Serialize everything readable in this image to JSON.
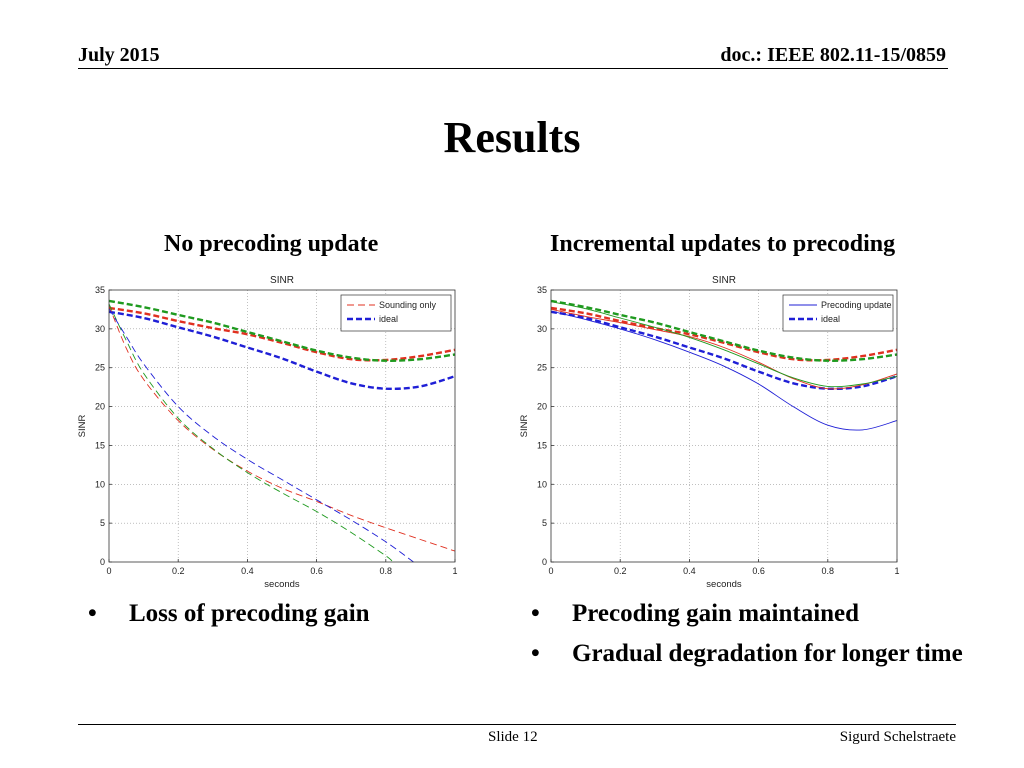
{
  "header": {
    "date": "July 2015",
    "doc": "doc.: IEEE 802.11-15/0859"
  },
  "title": "Results",
  "left_panel": {
    "subtitle": "No precoding update",
    "bullets": [
      {
        "symbol": "•",
        "text": "Loss of precoding gain"
      }
    ]
  },
  "right_panel": {
    "subtitle": "Incremental updates to precoding",
    "bullets": [
      {
        "symbol": "•",
        "text": "Precoding gain maintained"
      },
      {
        "symbol": "•",
        "text": "Gradual degradation for longer time"
      }
    ]
  },
  "footer": {
    "slide": "Slide 12",
    "author": "Sigurd Schelstraete"
  },
  "colors": {
    "red": "#e03020",
    "green": "#1f9a1f",
    "blue": "#1f1fd6"
  },
  "chart_data": [
    {
      "type": "line",
      "title": "SINR",
      "xlabel": "seconds",
      "ylabel": "SINR",
      "xlim": [
        0,
        1
      ],
      "ylim": [
        0,
        35
      ],
      "xticks": [
        0,
        0.2,
        0.4,
        0.6,
        0.8,
        1
      ],
      "xtick_labels": [
        "0",
        "0.2",
        "0.4",
        "0.6",
        "0.8",
        "1"
      ],
      "yticks": [
        0,
        5,
        10,
        15,
        20,
        25,
        30,
        35
      ],
      "ytick_labels": [
        "0",
        "5",
        "10",
        "15",
        "20",
        "25",
        "30",
        "35"
      ],
      "grid": true,
      "legend": {
        "position": "top-right",
        "entries": [
          {
            "label": "Sounding only",
            "style": "dashed-thin",
            "color": "red"
          },
          {
            "label": "ideal",
            "style": "dashed-thick",
            "color": "blue"
          }
        ]
      },
      "series": [
        {
          "name": "ideal (red)",
          "color": "red",
          "style": "dashed-thick",
          "x": [
            0,
            0.1,
            0.2,
            0.3,
            0.4,
            0.5,
            0.6,
            0.7,
            0.8,
            0.9,
            1.0
          ],
          "y": [
            32.7,
            32.0,
            31.0,
            30.1,
            29.3,
            28.2,
            27.0,
            26.1,
            26.0,
            26.5,
            27.3
          ]
        },
        {
          "name": "ideal (green)",
          "color": "green",
          "style": "dashed-thick",
          "x": [
            0,
            0.1,
            0.2,
            0.3,
            0.4,
            0.5,
            0.6,
            0.7,
            0.8,
            0.9,
            1.0
          ],
          "y": [
            33.6,
            32.8,
            31.8,
            30.8,
            29.6,
            28.4,
            27.2,
            26.3,
            25.9,
            26.1,
            26.7
          ]
        },
        {
          "name": "ideal (blue)",
          "color": "blue",
          "style": "dashed-thick",
          "x": [
            0,
            0.1,
            0.2,
            0.3,
            0.4,
            0.5,
            0.6,
            0.7,
            0.8,
            0.9,
            1.0
          ],
          "y": [
            32.2,
            31.4,
            30.2,
            29.0,
            27.6,
            26.2,
            24.5,
            23.0,
            22.3,
            22.6,
            23.9
          ]
        },
        {
          "name": "Sounding only (red)",
          "color": "red",
          "style": "dashed-thin",
          "x": [
            0,
            0.05,
            0.1,
            0.2,
            0.3,
            0.4,
            0.5,
            0.6,
            0.7,
            0.8,
            0.9,
            1.0
          ],
          "y": [
            33,
            27.5,
            23.5,
            18.2,
            14.5,
            11.7,
            9.5,
            7.8,
            6.0,
            4.4,
            2.9,
            1.4
          ]
        },
        {
          "name": "Sounding only (green)",
          "color": "green",
          "style": "dashed-thin",
          "x": [
            0,
            0.05,
            0.1,
            0.2,
            0.3,
            0.4,
            0.5,
            0.6,
            0.7,
            0.8,
            0.82
          ],
          "y": [
            33.2,
            28.5,
            24.3,
            18.5,
            14.6,
            11.5,
            8.9,
            6.5,
            3.8,
            0.8,
            0
          ]
        },
        {
          "name": "Sounding only (blue)",
          "color": "blue",
          "style": "dashed-thin",
          "x": [
            0,
            0.05,
            0.1,
            0.2,
            0.3,
            0.4,
            0.5,
            0.6,
            0.7,
            0.8,
            0.88
          ],
          "y": [
            32.6,
            29.0,
            25.5,
            20.0,
            16.2,
            13.2,
            10.6,
            8.0,
            5.4,
            2.6,
            0
          ]
        }
      ]
    },
    {
      "type": "line",
      "title": "SINR",
      "xlabel": "seconds",
      "ylabel": "SINR",
      "xlim": [
        0,
        1
      ],
      "ylim": [
        0,
        35
      ],
      "xticks": [
        0,
        0.2,
        0.4,
        0.6,
        0.8,
        1
      ],
      "xtick_labels": [
        "0",
        "0.2",
        "0.4",
        "0.6",
        "0.8",
        "1"
      ],
      "yticks": [
        0,
        5,
        10,
        15,
        20,
        25,
        30,
        35
      ],
      "ytick_labels": [
        "0",
        "5",
        "10",
        "15",
        "20",
        "25",
        "30",
        "35"
      ],
      "grid": true,
      "legend": {
        "position": "top-right",
        "entries": [
          {
            "label": "Precoding update",
            "style": "solid-thin",
            "color": "blue"
          },
          {
            "label": "ideal",
            "style": "dashed-thick",
            "color": "blue"
          }
        ]
      },
      "series": [
        {
          "name": "ideal (red)",
          "color": "red",
          "style": "dashed-thick",
          "x": [
            0,
            0.1,
            0.2,
            0.3,
            0.4,
            0.5,
            0.6,
            0.7,
            0.8,
            0.9,
            1.0
          ],
          "y": [
            32.7,
            32.0,
            31.0,
            30.1,
            29.3,
            28.2,
            27.0,
            26.1,
            26.0,
            26.5,
            27.3
          ]
        },
        {
          "name": "ideal (green)",
          "color": "green",
          "style": "dashed-thick",
          "x": [
            0,
            0.1,
            0.2,
            0.3,
            0.4,
            0.5,
            0.6,
            0.7,
            0.8,
            0.9,
            1.0
          ],
          "y": [
            33.6,
            32.8,
            31.8,
            30.8,
            29.6,
            28.4,
            27.2,
            26.3,
            25.9,
            26.1,
            26.7
          ]
        },
        {
          "name": "ideal (blue)",
          "color": "blue",
          "style": "dashed-thick",
          "x": [
            0,
            0.1,
            0.2,
            0.3,
            0.4,
            0.5,
            0.6,
            0.7,
            0.8,
            0.9,
            1.0
          ],
          "y": [
            32.2,
            31.4,
            30.2,
            29.0,
            27.6,
            26.2,
            24.5,
            23.0,
            22.3,
            22.6,
            23.9
          ]
        },
        {
          "name": "Precoding update (red)",
          "color": "red",
          "style": "solid-thin",
          "x": [
            0,
            0.1,
            0.2,
            0.3,
            0.4,
            0.5,
            0.6,
            0.7,
            0.8,
            0.9,
            1.0
          ],
          "y": [
            32.5,
            31.6,
            30.8,
            29.9,
            29.0,
            27.6,
            25.7,
            23.6,
            22.3,
            22.8,
            24.2
          ]
        },
        {
          "name": "Precoding update (green)",
          "color": "green",
          "style": "solid-thin",
          "x": [
            0,
            0.1,
            0.2,
            0.3,
            0.4,
            0.5,
            0.6,
            0.7,
            0.8,
            0.9,
            1.0
          ],
          "y": [
            33.5,
            32.6,
            31.4,
            30.2,
            28.9,
            27.3,
            25.5,
            23.7,
            22.6,
            22.9,
            23.9
          ]
        },
        {
          "name": "Precoding update (blue)",
          "color": "blue",
          "style": "solid-thin",
          "x": [
            0,
            0.1,
            0.2,
            0.3,
            0.4,
            0.5,
            0.6,
            0.7,
            0.8,
            0.9,
            1.0
          ],
          "y": [
            32.3,
            31.2,
            30.0,
            28.6,
            27.0,
            25.2,
            22.9,
            20.0,
            17.6,
            17.0,
            18.2
          ]
        }
      ]
    }
  ]
}
